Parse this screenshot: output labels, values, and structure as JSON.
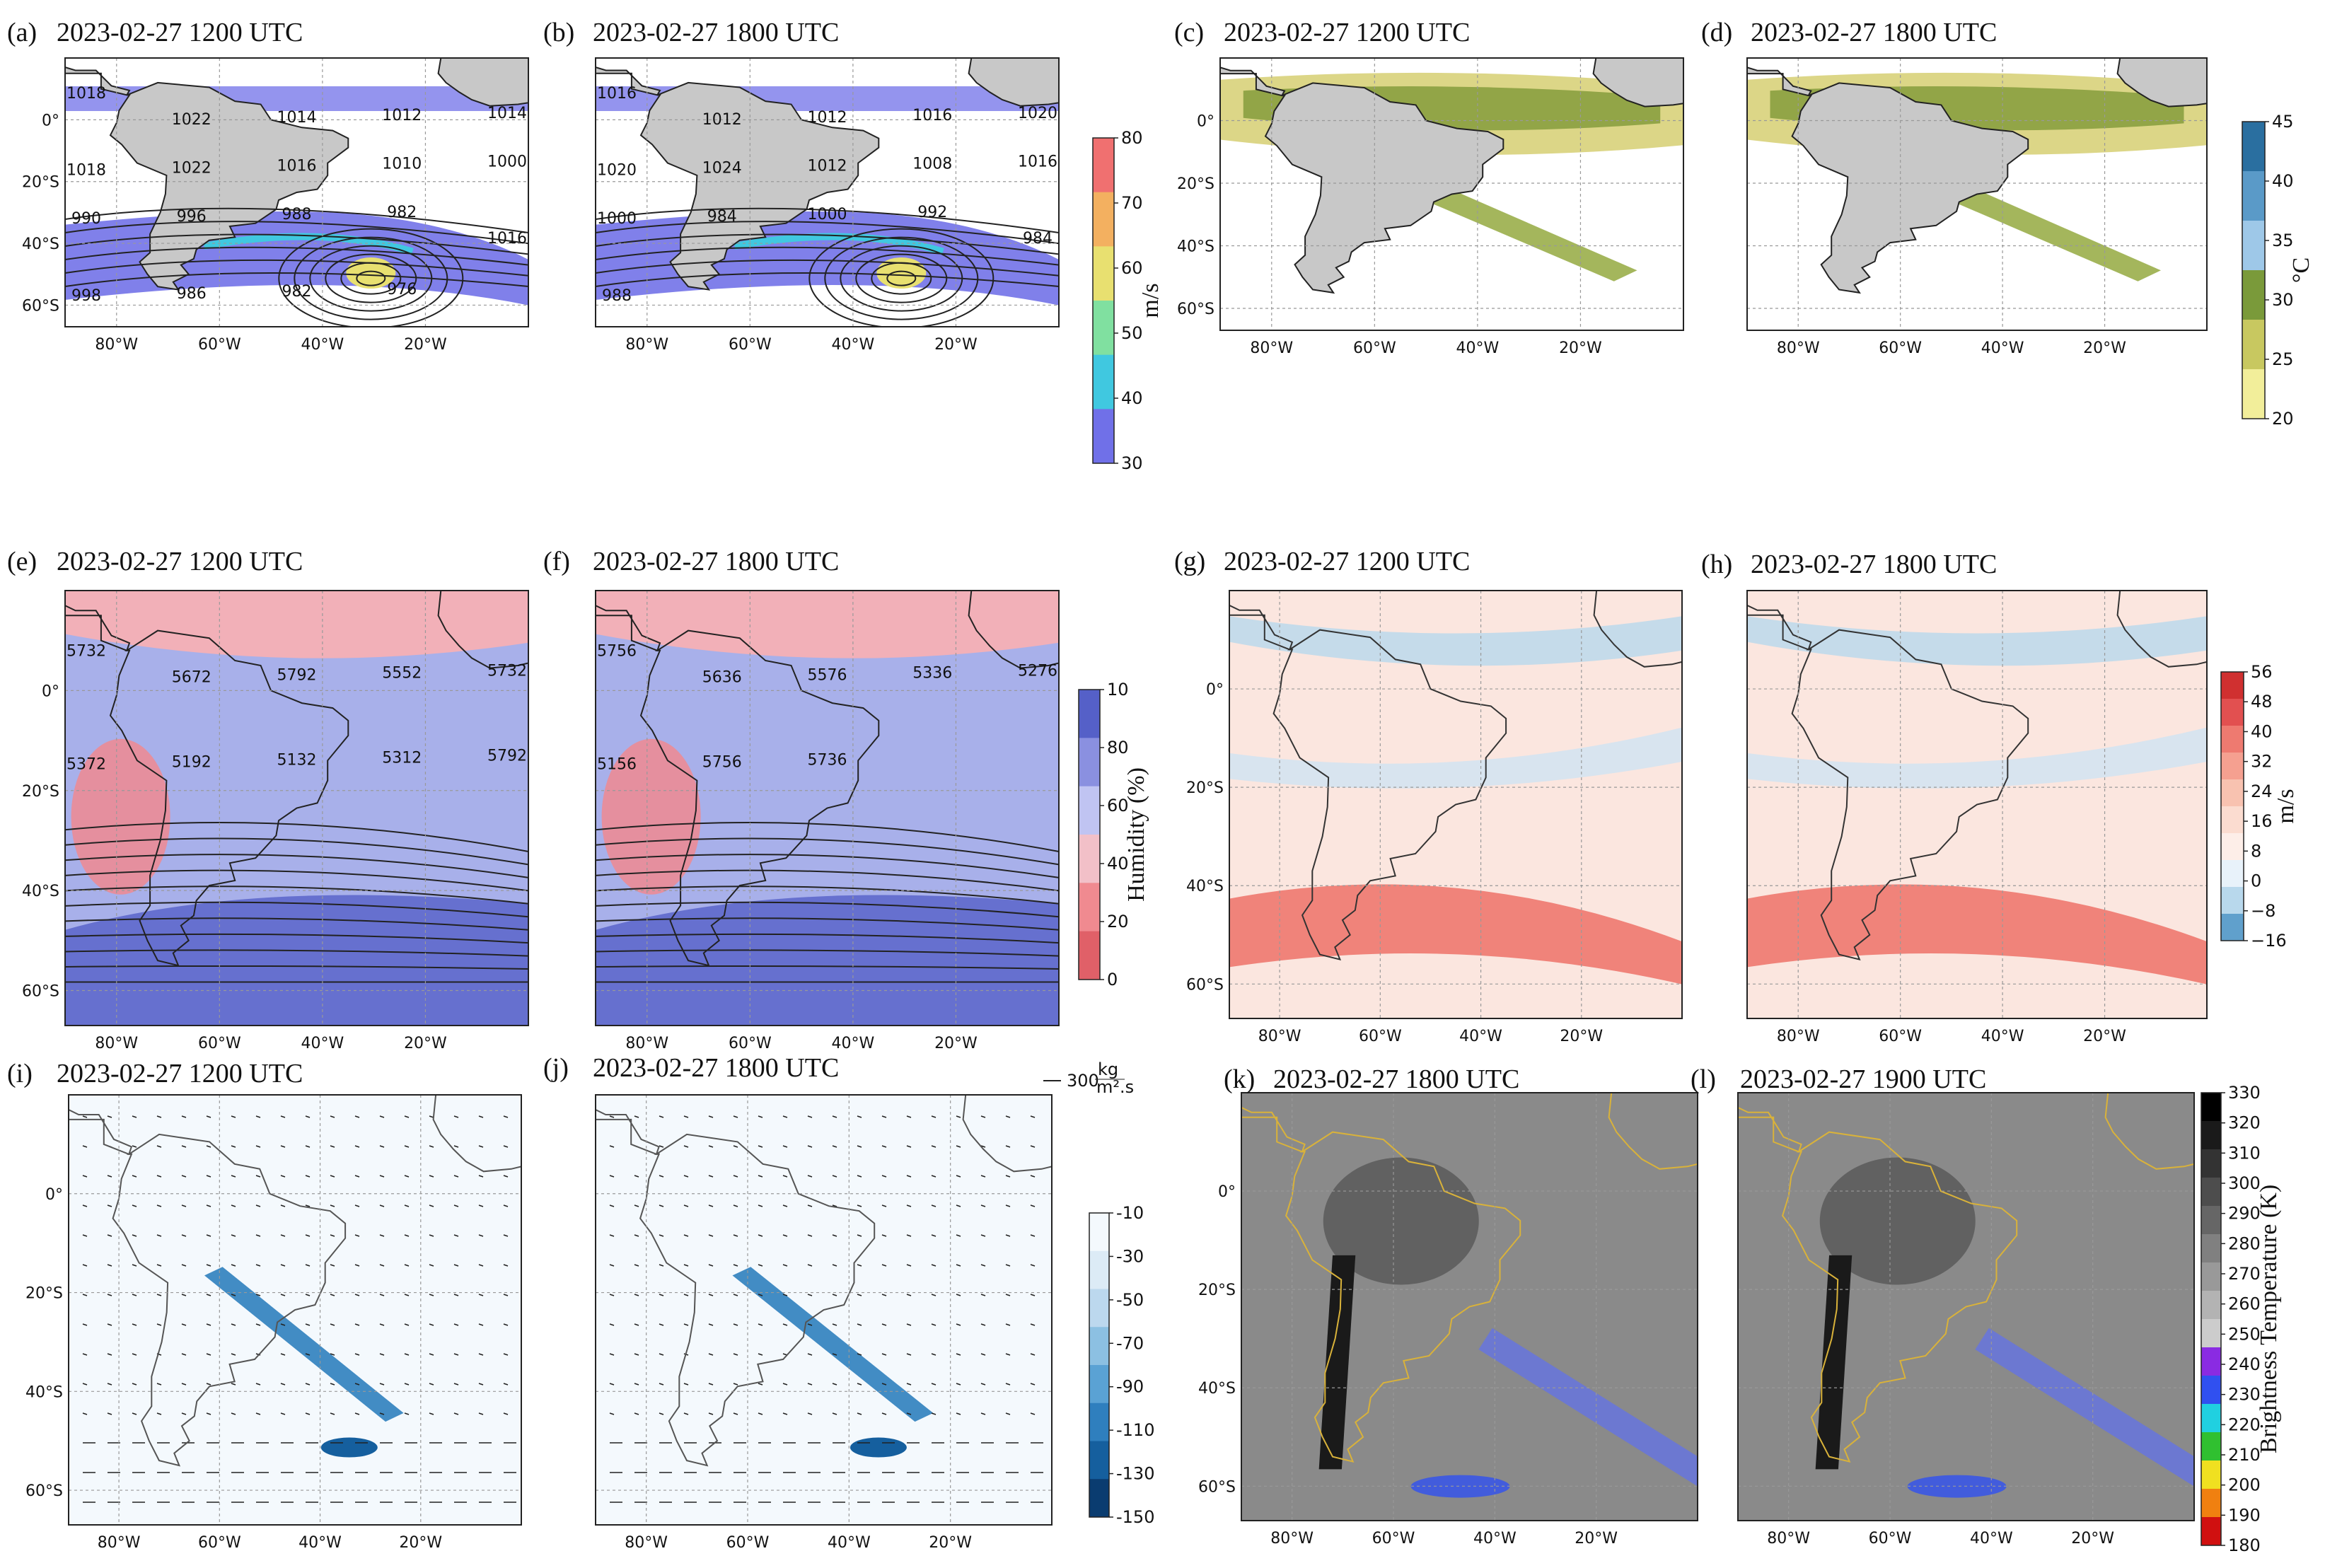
{
  "colors": {
    "land": "#c8c8c8",
    "ocean": "#ffffff",
    "coast": "#333333",
    "grid": "#aaaaaa"
  },
  "panels": [
    {
      "id": "a",
      "label": "(a)",
      "time": "2023-02-27 1200 UTC",
      "style": "jet",
      "lat_labels": [
        "0°",
        "20°S",
        "40°S",
        "60°S"
      ],
      "lon_labels": [
        "80°W",
        "60°W",
        "40°W",
        "20°W"
      ],
      "contour_labels": [
        "1018",
        "1022",
        "1014",
        "1012",
        "1014",
        "1018",
        "1022",
        "1016",
        "1010",
        "1000",
        "990",
        "996",
        "988",
        "982",
        "1016",
        "998",
        "986",
        "982",
        "976"
      ]
    },
    {
      "id": "b",
      "label": "(b)",
      "time": "2023-02-27 1800 UTC",
      "style": "jet",
      "lat_labels": [],
      "lon_labels": [
        "80°W",
        "60°W",
        "40°W",
        "20°W"
      ],
      "contour_labels": [
        "1016",
        "1012",
        "1012",
        "1016",
        "1020",
        "1020",
        "1024",
        "1012",
        "1008",
        "1016",
        "1000",
        "984",
        "1000",
        "992",
        "984",
        "988"
      ]
    },
    {
      "id": "c",
      "label": "(c)",
      "time": "2023-02-27 1200 UTC",
      "style": "temp",
      "lat_labels": [
        "0°",
        "20°S",
        "40°S",
        "60°S"
      ],
      "lon_labels": [
        "80°W",
        "60°W",
        "40°W",
        "20°W"
      ],
      "contour_labels": []
    },
    {
      "id": "d",
      "label": "(d)",
      "time": "2023-02-27 1800 UTC",
      "style": "temp",
      "lat_labels": [],
      "lon_labels": [
        "80°W",
        "60°W",
        "40°W",
        "20°W"
      ],
      "contour_labels": []
    },
    {
      "id": "e",
      "label": "(e)",
      "time": "2023-02-27 1200 UTC",
      "style": "humid",
      "lat_labels": [
        "0°",
        "20°S",
        "40°S",
        "60°S"
      ],
      "lon_labels": [
        "80°W",
        "60°W",
        "40°W",
        "20°W"
      ],
      "contour_labels": [
        "5732",
        "5672",
        "5792",
        "5552",
        "5732",
        "5372",
        "5192",
        "5132",
        "5312",
        "5792"
      ]
    },
    {
      "id": "f",
      "label": "(f)",
      "time": "2023-02-27 1800 UTC",
      "style": "humid",
      "lat_labels": [],
      "lon_labels": [
        "80°W",
        "60°W",
        "40°W",
        "20°W"
      ],
      "contour_labels": [
        "5756",
        "5636",
        "5576",
        "5336",
        "5276",
        "5156",
        "5756",
        "5736"
      ]
    },
    {
      "id": "g",
      "label": "(g)",
      "time": "2023-02-27 1200 UTC",
      "style": "wind",
      "lat_labels": [
        "0°",
        "20°S",
        "40°S",
        "60°S"
      ],
      "lon_labels": [
        "80°W",
        "60°W",
        "40°W",
        "20°W"
      ],
      "contour_labels": []
    },
    {
      "id": "h",
      "label": "(h)",
      "time": "2023-02-27 1800 UTC",
      "style": "wind",
      "lat_labels": [],
      "lon_labels": [
        "80°W",
        "60°W",
        "40°W",
        "20°W"
      ],
      "contour_labels": []
    },
    {
      "id": "i",
      "label": "(i)",
      "time": "2023-02-27 1200 UTC",
      "style": "ivt",
      "lat_labels": [
        "0°",
        "20°S",
        "40°S",
        "60°S"
      ],
      "lon_labels": [
        "80°W",
        "60°W",
        "40°W",
        "20°W"
      ],
      "contour_labels": []
    },
    {
      "id": "j",
      "label": "(j)",
      "time": "2023-02-27 1800 UTC",
      "style": "ivt",
      "lat_labels": [],
      "lon_labels": [
        "80°W",
        "60°W",
        "40°W",
        "20°W"
      ],
      "contour_labels": []
    },
    {
      "id": "k",
      "label": "(k)",
      "time": "2023-02-27 1800 UTC",
      "style": "sat",
      "lat_labels": [
        "0°",
        "20°S",
        "40°S",
        "60°S"
      ],
      "lon_labels": [
        "80°W",
        "60°W",
        "40°W",
        "20°W"
      ],
      "contour_labels": []
    },
    {
      "id": "l",
      "label": "(l)",
      "time": "2023-02-27 1900 UTC",
      "style": "sat",
      "lat_labels": [],
      "lon_labels": [
        "80°W",
        "60°W",
        "40°W",
        "20°W"
      ],
      "contour_labels": []
    }
  ],
  "colorbars": [
    {
      "id": "cb-jet",
      "label": "m/s",
      "ticks": [
        "80",
        "70",
        "60",
        "50",
        "40",
        "30"
      ],
      "colors": [
        "#f07070",
        "#f3b060",
        "#e8e070",
        "#80e0a0",
        "#40c8e0",
        "#7070e8"
      ]
    },
    {
      "id": "cb-temp",
      "label": "°C",
      "ticks": [
        "45",
        "40",
        "35",
        "30",
        "25",
        "20"
      ],
      "colors": [
        "#2a6fa0",
        "#5a9ac8",
        "#9ec8e8",
        "#7a9a3a",
        "#c8c860",
        "#f2ee9a"
      ]
    },
    {
      "id": "cb-humid",
      "label": "Humidity (%)",
      "ticks": [
        "10",
        "80",
        "60",
        "40",
        "20",
        "0"
      ],
      "colors": [
        "#5560c8",
        "#8a90e0",
        "#c0c4f2",
        "#f2c0c8",
        "#f08a90",
        "#e06068"
      ]
    },
    {
      "id": "cb-wind",
      "label": "m/s",
      "ticks": [
        "56",
        "48",
        "40",
        "32",
        "24",
        "16",
        "8",
        "0",
        "−8",
        "−16"
      ],
      "colors": [
        "#d03030",
        "#e25050",
        "#ee7a70",
        "#f5a090",
        "#f8c2b0",
        "#fbdcd0",
        "#fdeee8",
        "#e8f2fa",
        "#b8d8ec",
        "#60a0cc"
      ]
    },
    {
      "id": "cb-ivt",
      "label": "",
      "ticks": [
        "-10",
        "-30",
        "-50",
        "-70",
        "-90",
        "-110",
        "-130",
        "-150"
      ],
      "colors": [
        "#f4f9fd",
        "#dcebf6",
        "#bcd8ee",
        "#8cc0e2",
        "#5aa2d4",
        "#2f7fbe",
        "#155f9e",
        "#0a3c70"
      ],
      "vector_label": "300",
      "vector_unit_top": "kg",
      "vector_unit_bottom": "m².s"
    },
    {
      "id": "cb-sat",
      "label": "Brightness Temperature (K)",
      "ticks": [
        "330",
        "320",
        "310",
        "300",
        "290",
        "280",
        "270",
        "260",
        "250",
        "240",
        "230",
        "220",
        "210",
        "200",
        "190",
        "180"
      ],
      "colors": [
        "#000000",
        "#1a1a1a",
        "#333333",
        "#4d4d4d",
        "#666666",
        "#808080",
        "#999999",
        "#b3b3b3",
        "#cccccc",
        "#8a2be2",
        "#3050f0",
        "#20d0e0",
        "#30c030",
        "#f0e020",
        "#f08010",
        "#d01010"
      ]
    }
  ]
}
